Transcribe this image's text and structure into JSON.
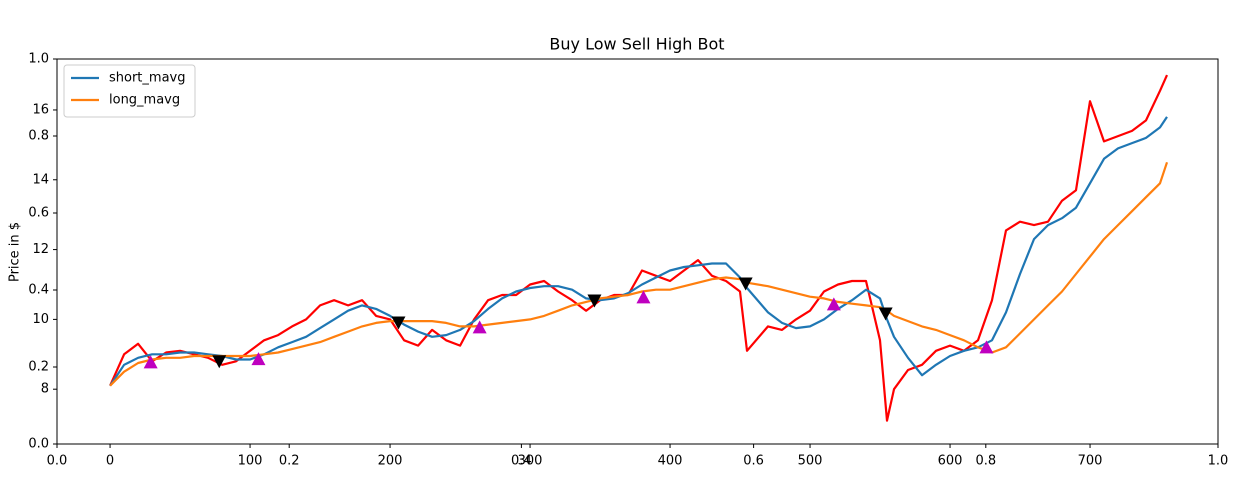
{
  "chart_data": {
    "type": "line",
    "title": "Buy Low Sell High Bot",
    "y_label": "Price in $",
    "xlim": [
      -37.9,
      791.4
    ],
    "ylim": [
      6.43,
      17.46
    ],
    "xticks": [
      0,
      100,
      200,
      300,
      400,
      500,
      600,
      700
    ],
    "yticks": [
      8,
      10,
      12,
      14,
      16
    ],
    "legend": "upper left",
    "x": [
      0,
      10,
      20,
      30,
      40,
      50,
      60,
      70,
      80,
      90,
      100,
      110,
      120,
      130,
      140,
      150,
      160,
      170,
      180,
      190,
      200,
      210,
      220,
      230,
      240,
      250,
      260,
      270,
      280,
      290,
      300,
      310,
      320,
      330,
      340,
      350,
      360,
      370,
      380,
      390,
      400,
      410,
      420,
      430,
      440,
      450,
      455,
      470,
      480,
      490,
      500,
      510,
      520,
      530,
      540,
      550,
      555,
      560,
      570,
      580,
      590,
      600,
      610,
      620,
      630,
      640,
      650,
      660,
      670,
      680,
      690,
      700,
      710,
      720,
      730,
      740,
      750,
      755
    ],
    "series": [
      {
        "color": "#ff0000",
        "values": [
          8.1,
          9.0,
          9.3,
          8.8,
          9.05,
          9.1,
          9.0,
          8.9,
          8.7,
          8.8,
          9.1,
          9.4,
          9.55,
          9.8,
          10.0,
          10.4,
          10.55,
          10.4,
          10.55,
          10.1,
          10.0,
          9.4,
          9.25,
          9.7,
          9.4,
          9.25,
          10.0,
          10.55,
          10.7,
          10.7,
          11.0,
          11.1,
          10.8,
          10.55,
          10.25,
          10.55,
          10.7,
          10.7,
          11.4,
          11.25,
          11.1,
          11.4,
          11.7,
          11.25,
          11.1,
          10.8,
          9.1,
          9.8,
          9.7,
          10.0,
          10.25,
          10.8,
          11.0,
          11.1,
          11.1,
          9.4,
          7.1,
          8.0,
          8.55,
          8.7,
          9.1,
          9.25,
          9.1,
          9.4,
          10.55,
          12.55,
          12.8,
          12.7,
          12.8,
          13.4,
          13.7,
          16.25,
          15.1,
          15.25,
          15.4,
          15.7,
          16.55,
          17.0
        ]
      },
      {
        "name": "short_mavg",
        "color": "#1f77b4",
        "values": [
          8.1,
          8.7,
          8.9,
          9.0,
          9.0,
          9.05,
          9.05,
          9.0,
          8.95,
          8.85,
          8.85,
          9.0,
          9.2,
          9.35,
          9.5,
          9.75,
          10.0,
          10.25,
          10.4,
          10.3,
          10.1,
          9.85,
          9.65,
          9.5,
          9.55,
          9.7,
          9.95,
          10.3,
          10.6,
          10.8,
          10.9,
          10.95,
          10.95,
          10.85,
          10.6,
          10.55,
          10.6,
          10.75,
          11.0,
          11.2,
          11.4,
          11.5,
          11.55,
          11.6,
          11.6,
          11.2,
          10.9,
          10.2,
          9.9,
          9.75,
          9.8,
          10.0,
          10.3,
          10.55,
          10.85,
          10.6,
          10.0,
          9.5,
          8.9,
          8.4,
          8.7,
          8.95,
          9.1,
          9.2,
          9.4,
          10.2,
          11.3,
          12.3,
          12.7,
          12.9,
          13.2,
          13.9,
          14.6,
          14.9,
          15.05,
          15.2,
          15.5,
          15.8
        ]
      },
      {
        "name": "long_mavg",
        "color": "#ff7f0e",
        "values": [
          8.1,
          8.5,
          8.75,
          8.85,
          8.9,
          8.9,
          8.95,
          8.95,
          8.95,
          8.95,
          8.95,
          9.0,
          9.05,
          9.15,
          9.25,
          9.35,
          9.5,
          9.65,
          9.8,
          9.9,
          9.95,
          9.95,
          9.95,
          9.95,
          9.9,
          9.8,
          9.8,
          9.85,
          9.9,
          9.95,
          10.0,
          10.1,
          10.25,
          10.4,
          10.5,
          10.6,
          10.65,
          10.7,
          10.8,
          10.85,
          10.85,
          10.95,
          11.05,
          11.15,
          11.2,
          11.15,
          11.05,
          10.95,
          10.85,
          10.75,
          10.65,
          10.6,
          10.5,
          10.45,
          10.4,
          10.35,
          10.25,
          10.1,
          9.95,
          9.8,
          9.7,
          9.55,
          9.4,
          9.2,
          9.05,
          9.2,
          9.6,
          10.0,
          10.4,
          10.8,
          11.3,
          11.8,
          12.3,
          12.7,
          13.1,
          13.5,
          13.9,
          14.5
        ]
      }
    ],
    "signals": {
      "buy": {
        "color": "#bf00bf",
        "x": [
          29,
          106,
          264,
          381,
          517,
          626
        ],
        "y": [
          8.77,
          8.86,
          9.77,
          10.63,
          10.43,
          9.2
        ]
      },
      "sell": {
        "color": "#000000",
        "x": [
          78,
          206,
          346,
          454,
          554
        ],
        "y": [
          8.8,
          9.91,
          10.54,
          11.03,
          10.17
        ]
      }
    },
    "overlay_axis": {
      "xlim": [
        0,
        1
      ],
      "ylim": [
        0,
        1
      ],
      "xticks": [
        {
          "value": 0,
          "label": "0.0"
        },
        0.2,
        0.4,
        0.6,
        0.8,
        {
          "value": 1,
          "label": "1.0"
        }
      ],
      "yticks": [
        {
          "value": 0,
          "label": "0.0"
        },
        0.2,
        0.4,
        0.6,
        0.8,
        {
          "value": 1,
          "label": "1.0"
        }
      ]
    }
  }
}
